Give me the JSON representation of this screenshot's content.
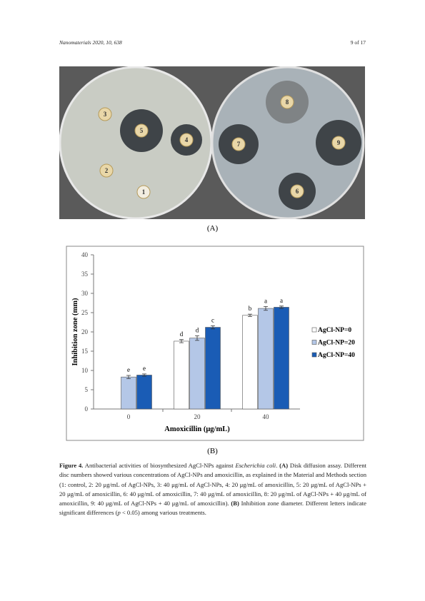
{
  "header": {
    "citation": "Nanomaterials 2020, 10, 638",
    "page": "9 of 17"
  },
  "photo": {
    "disk_labels": [
      "1",
      "2",
      "3",
      "4",
      "5",
      "6",
      "7",
      "8",
      "9"
    ]
  },
  "panel_labels": [
    "(A)",
    "(B)"
  ],
  "chart_data": {
    "type": "bar",
    "categories": [
      "0",
      "20",
      "40"
    ],
    "series": [
      {
        "name": "AgCl-NP=0",
        "color": "#ffffff",
        "values": [
          null,
          17.6,
          24.3
        ],
        "errors": [
          null,
          0.4,
          0.3
        ],
        "letters": [
          null,
          "d",
          "b"
        ]
      },
      {
        "name": "AgCl-NP=20",
        "color": "#b4c7e7",
        "values": [
          8.3,
          18.4,
          26.1
        ],
        "errors": [
          0.4,
          0.6,
          0.5
        ],
        "letters": [
          "e",
          "d",
          "a"
        ]
      },
      {
        "name": "AgCl-NP=40",
        "color": "#1a5cb5",
        "values": [
          8.8,
          21.2,
          26.4
        ],
        "errors": [
          0.3,
          0.4,
          0.3
        ],
        "letters": [
          "e",
          "c",
          "a"
        ]
      }
    ],
    "y_label": "Inhibition zone (mm)",
    "x_label": "Amoxicillin (μg/mL)",
    "ylim": [
      0,
      40
    ],
    "yticks": [
      0,
      5,
      10,
      15,
      20,
      25,
      30,
      35,
      40
    ],
    "legend": "right",
    "grid": false
  },
  "caption": {
    "parts": [
      "Figure 4.",
      " Antibacterial activities of biosynthesized AgCl-NPs against ",
      "Escherichia coli",
      ". ",
      "(A)",
      " Disk diffusion assay. Different disc numbers showed various concentrations of AgCl-NPs and amoxicillin, as explained in the Material and Methods section (1: control, 2: 20 μg/mL of AgCl-NPs, 3: 40 μg/mL of AgCl-NPs, 4: 20 μg/mL of amoxicillin, 5: 20 μg/mL of AgCl-NPs + 20 μg/mL of amoxicillin, 6: 40 μg/mL of amoxicillin, 7: 40 μg/mL of amoxicillin, 8: 20 μg/mL of AgCl-NPs + 40 μg/mL of amoxicillin, 9: 40 μg/mL of AgCl-NPs + 40 μg/mL of amoxicillin). ",
      "(B)",
      " Inhibition zone diameter. Different letters indicate significant differences (",
      "p",
      " < 0.05) among various treatments."
    ]
  }
}
